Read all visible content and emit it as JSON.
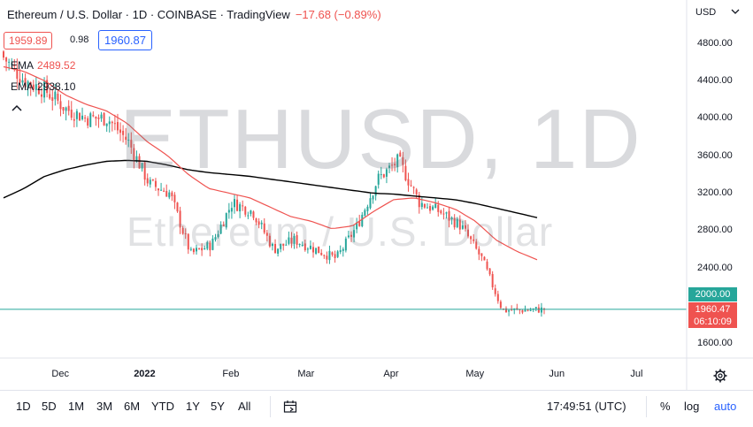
{
  "header": {
    "title": "Ethereum / U.S. Dollar · 1D · COINBASE · TradingView",
    "change": "−17.68 (−0.89%)",
    "bid": "1959.89",
    "spread": "0.98",
    "ask": "1960.87",
    "ema1_label": "EMA",
    "ema1_value": "2489.52",
    "ema2_label": "EMA",
    "ema2_value": "2938.10"
  },
  "watermark": {
    "symbol": "ETHUSD, 1D",
    "name": "Ethereum / U.S. Dollar"
  },
  "price_axis": {
    "currency": "USD",
    "ticks": [
      "4800.00",
      "4400.00",
      "4000.00",
      "3600.00",
      "3200.00",
      "2800.00",
      "2400.00",
      "2000.00",
      "1600.00"
    ],
    "highlight_label": "2000.00",
    "last_price": "1960.47",
    "countdown": "06:10:09"
  },
  "time_axis": {
    "ticks": [
      "Dec",
      "2022",
      "Feb",
      "Mar",
      "Apr",
      "May",
      "Jun",
      "Jul"
    ]
  },
  "bottom_bar": {
    "ranges": [
      "1D",
      "5D",
      "1M",
      "3M",
      "6M",
      "YTD",
      "1Y",
      "5Y",
      "All"
    ],
    "clock": "17:49:51 (UTC)",
    "percent": "%",
    "log": "log",
    "auto": "auto"
  },
  "colors": {
    "up": "#26a69a",
    "down": "#ef5350",
    "ema_short": "#ef5350",
    "ema_long": "#000000",
    "accent": "#2962ff"
  },
  "chart_data": {
    "type": "candlestick",
    "symbol": "ETHUSD",
    "interval": "1D",
    "ylim": [
      1500,
      5000
    ],
    "x": [
      "Nov 15",
      "Nov 22",
      "Dec 1",
      "Dec 8",
      "Dec 15",
      "Dec 22",
      "Jan 1",
      "Jan 8",
      "Jan 15",
      "Jan 22",
      "Feb 1",
      "Feb 8",
      "Feb 15",
      "Feb 22",
      "Mar 1",
      "Mar 8",
      "Mar 15",
      "Mar 22",
      "Apr 1",
      "Apr 8",
      "Apr 15",
      "Apr 22",
      "May 1",
      "May 8",
      "May 12",
      "May 18",
      "May 24"
    ],
    "series": [
      {
        "values": [
          4650,
          4400,
          4300,
          4100,
          4000,
          4000,
          3750,
          3300,
          3200,
          2550,
          2650,
          3100,
          3000,
          2600,
          2700,
          2600,
          2500,
          2850,
          3350,
          3550,
          3100,
          3000,
          2850,
          2500,
          1950,
          1950,
          1960
        ]
      },
      {
        "name": "EMA",
        "values": [
          4550,
          4500,
          4400,
          4250,
          4150,
          4080,
          3950,
          3750,
          3600,
          3400,
          3250,
          3200,
          3150,
          3050,
          2950,
          2900,
          2820,
          2850,
          3000,
          3130,
          3150,
          3100,
          3030,
          2900,
          2700,
          2580,
          2489.52
        ]
      },
      {
        "name": "EMA",
        "values": [
          3150,
          3250,
          3380,
          3450,
          3500,
          3540,
          3550,
          3540,
          3500,
          3450,
          3420,
          3400,
          3380,
          3350,
          3320,
          3290,
          3260,
          3230,
          3200,
          3190,
          3170,
          3150,
          3130,
          3090,
          3040,
          2990,
          2938.1
        ]
      }
    ],
    "last_price": 1960.47
  }
}
